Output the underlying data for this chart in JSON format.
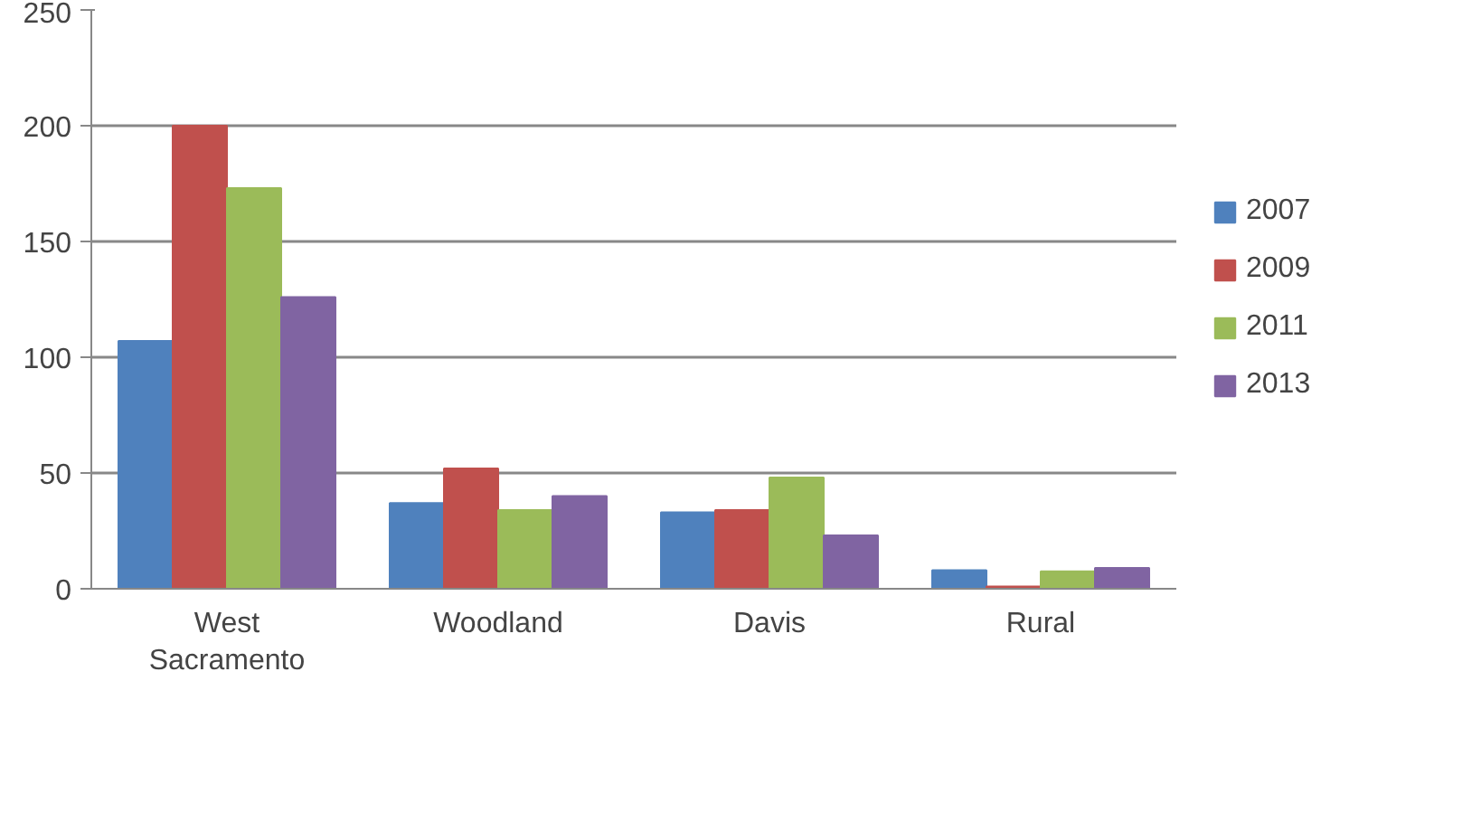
{
  "chart_data": {
    "type": "bar",
    "categories": [
      "West\nSacramento",
      "Woodland",
      "Davis",
      "Rural"
    ],
    "series": [
      {
        "name": "2007",
        "color": "#4f81bd",
        "values": [
          107,
          37,
          33,
          8
        ]
      },
      {
        "name": "2009",
        "color": "#c0504d",
        "values": [
          200,
          52,
          34,
          1
        ]
      },
      {
        "name": "2011",
        "color": "#9bbb59",
        "values": [
          173,
          34,
          48,
          7.5
        ]
      },
      {
        "name": "2013",
        "color": "#8064a2",
        "values": [
          126,
          40,
          23,
          9
        ]
      }
    ],
    "ylim": [
      0,
      250
    ],
    "yticks": [
      0,
      50,
      100,
      150,
      200,
      250
    ],
    "grid": "y",
    "legend": "right"
  }
}
